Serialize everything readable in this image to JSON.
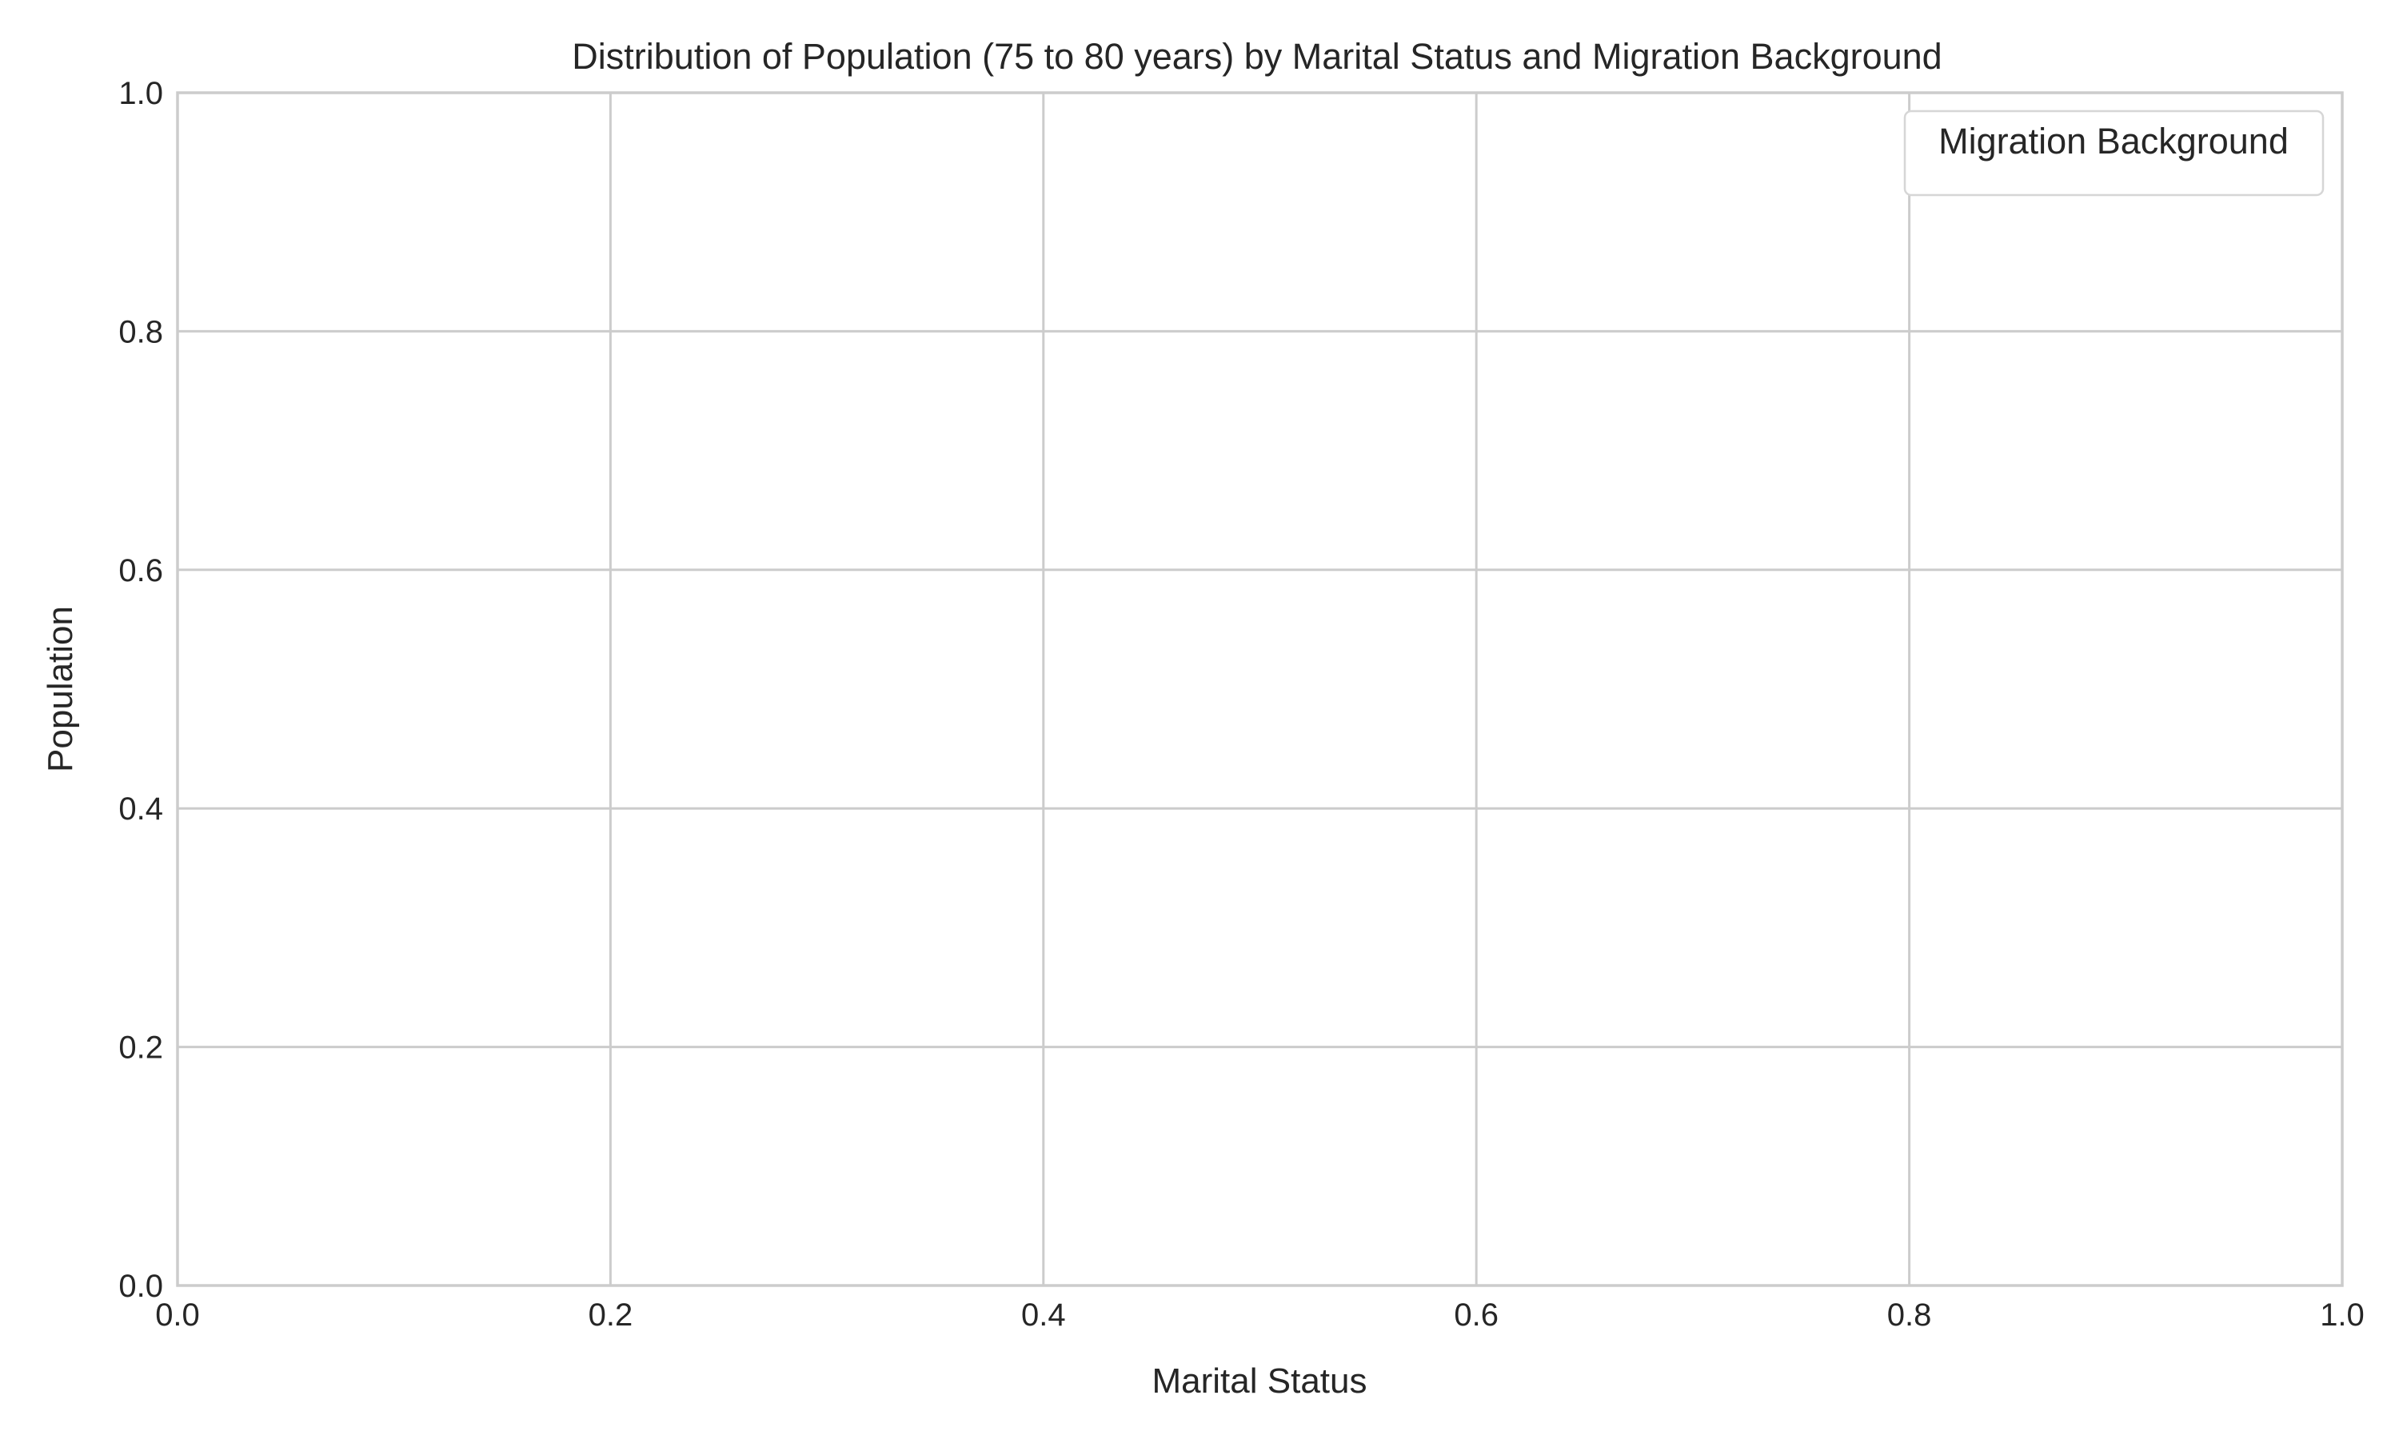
{
  "chart_data": {
    "type": "bar",
    "title": "Distribution of Population (75 to 80 years) by Marital Status and Migration Background",
    "xlabel": "Marital Status",
    "ylabel": "Population",
    "xlim": [
      0.0,
      1.0
    ],
    "ylim": [
      0.0,
      1.0
    ],
    "x_ticks": [
      "0.0",
      "0.2",
      "0.4",
      "0.6",
      "0.8",
      "1.0"
    ],
    "y_ticks": [
      "0.0",
      "0.2",
      "0.4",
      "0.6",
      "0.8",
      "1.0"
    ],
    "grid": true,
    "legend": {
      "title": "Migration Background",
      "placement": "top-right",
      "entries": []
    },
    "categories": [],
    "series": []
  }
}
